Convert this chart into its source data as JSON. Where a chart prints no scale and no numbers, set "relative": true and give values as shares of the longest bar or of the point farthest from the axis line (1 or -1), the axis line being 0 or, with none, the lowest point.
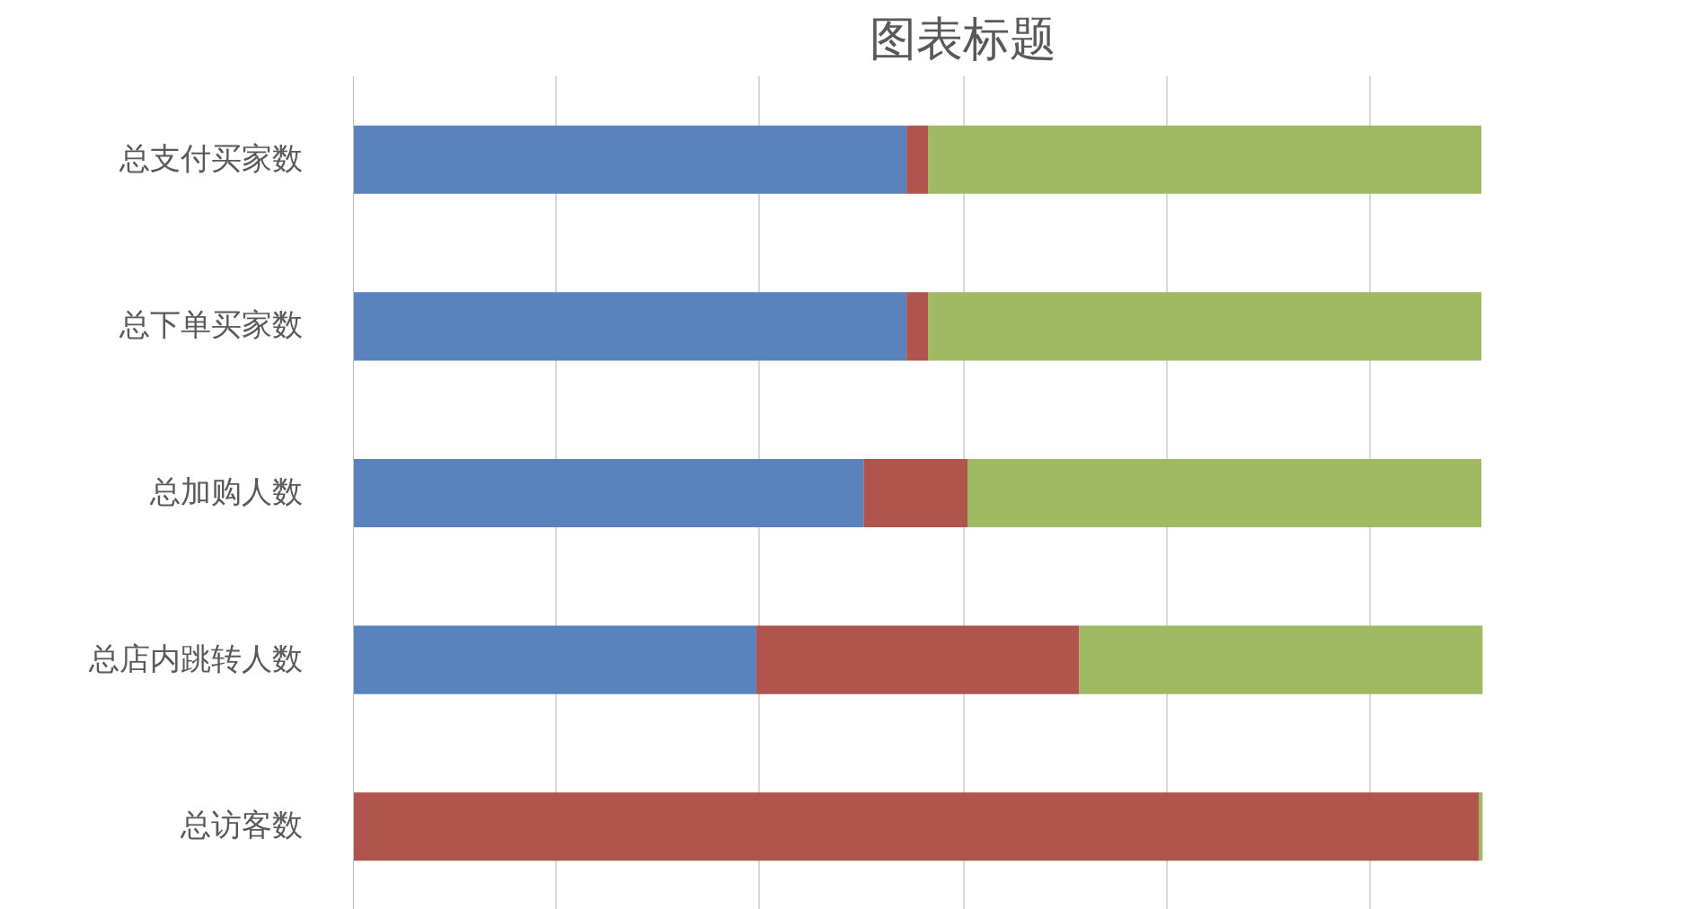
{
  "chart_data": {
    "type": "bar",
    "orientation": "horizontal",
    "stacked": true,
    "relative": true,
    "title": "图表标题",
    "categories": [
      "总支付买家数",
      "总下单买家数",
      "总加购人数",
      "总店内跳转人数",
      "总访客数"
    ],
    "series": [
      {
        "color": "#5a82bc",
        "values": [
          0.49,
          0.49,
          0.452,
          0.357,
          0
        ]
      },
      {
        "color": "#b0554d",
        "values": [
          0.019,
          0.019,
          0.092,
          0.286,
          0.997
        ]
      },
      {
        "color": "#a0b963",
        "values": [
          0.49,
          0.49,
          0.455,
          0.357,
          0.003
        ]
      }
    ],
    "grid": "x"
  }
}
